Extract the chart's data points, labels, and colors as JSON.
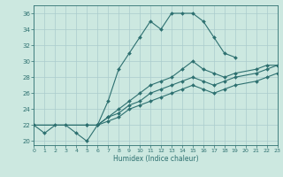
{
  "xlabel": "Humidex (Indice chaleur)",
  "ylabel": "",
  "background_color": "#cce8e0",
  "grid_color": "#aacccc",
  "line_color": "#2d7070",
  "xlim": [
    0,
    23
  ],
  "ylim": [
    19.5,
    37
  ],
  "xticks": [
    0,
    1,
    2,
    3,
    4,
    5,
    6,
    7,
    8,
    9,
    10,
    11,
    12,
    13,
    14,
    15,
    16,
    17,
    18,
    19,
    20,
    21,
    22,
    23
  ],
  "yticks": [
    20,
    22,
    24,
    26,
    28,
    30,
    32,
    34,
    36
  ],
  "line1_x": [
    0,
    1,
    2,
    3,
    4,
    5,
    6,
    7,
    8,
    9,
    10,
    11,
    12,
    13,
    14,
    15,
    16,
    17,
    18,
    19
  ],
  "line1_y": [
    22,
    21,
    22,
    22,
    21,
    20,
    22,
    25,
    29,
    31,
    33,
    35,
    34,
    36,
    36,
    36,
    35,
    33,
    31,
    30.5
  ],
  "line2_x": [
    0,
    6,
    7,
    8,
    9,
    10,
    11,
    12,
    13,
    14,
    15,
    16,
    17,
    18,
    19,
    21,
    22,
    23
  ],
  "line2_y": [
    22,
    22,
    23,
    24,
    25,
    26,
    27,
    27.5,
    28,
    29,
    30,
    29,
    28.5,
    28,
    28.5,
    29,
    29.5,
    29.5
  ],
  "line3_x": [
    0,
    5,
    6,
    7,
    8,
    9,
    10,
    11,
    12,
    13,
    14,
    15,
    16,
    17,
    18,
    19,
    21,
    22,
    23
  ],
  "line3_y": [
    22,
    22,
    22,
    23,
    23.5,
    24.5,
    25,
    26,
    26.5,
    27,
    27.5,
    28,
    27.5,
    27,
    27.5,
    28,
    28.5,
    29,
    29.5
  ],
  "line4_x": [
    0,
    5,
    6,
    7,
    8,
    9,
    10,
    11,
    12,
    13,
    14,
    15,
    16,
    17,
    18,
    19,
    21,
    22,
    23
  ],
  "line4_y": [
    22,
    22,
    22,
    22.5,
    23,
    24,
    24.5,
    25,
    25.5,
    26,
    26.5,
    27,
    26.5,
    26,
    26.5,
    27,
    27.5,
    28,
    28.5
  ]
}
